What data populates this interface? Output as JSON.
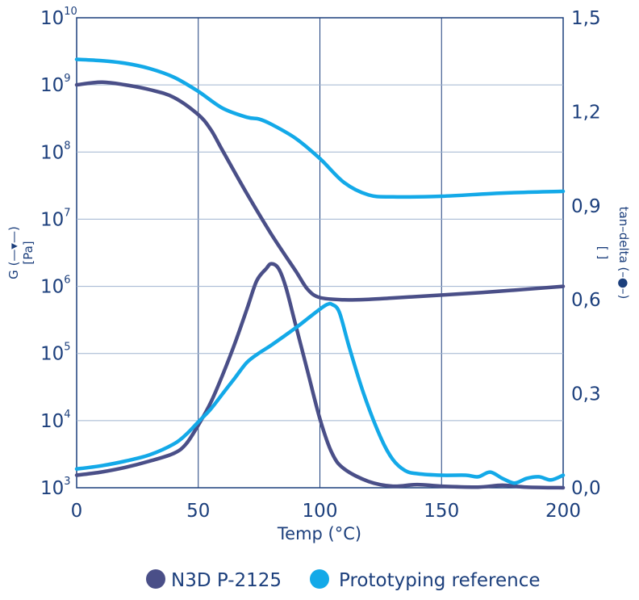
{
  "chart_data": {
    "type": "line",
    "xlabel": "Temp (°C)",
    "left_axis": {
      "label": "G (—▾—)",
      "unit": "[Pa]",
      "scale": "log",
      "ylim": [
        1000,
        10000000000
      ],
      "ticks": [
        {
          "base": "10",
          "exp": "3"
        },
        {
          "base": "10",
          "exp": "4"
        },
        {
          "base": "10",
          "exp": "5"
        },
        {
          "base": "10",
          "exp": "6"
        },
        {
          "base": "10",
          "exp": "7"
        },
        {
          "base": "10",
          "exp": "8"
        },
        {
          "base": "10",
          "exp": "9"
        },
        {
          "base": "10",
          "exp": "10"
        }
      ]
    },
    "right_axis": {
      "label": "tan–delta (–●–)",
      "unit": "[ ]",
      "ylim": [
        0,
        1.5
      ],
      "ticks": [
        "0,0",
        "0,3",
        "0,6",
        "0,9",
        "1,2",
        "1,5"
      ]
    },
    "x_axis": {
      "xlim": [
        0,
        200
      ],
      "ticks": [
        "0",
        "50",
        "100",
        "150",
        "200"
      ]
    },
    "grid": true,
    "legend_position": "bottom",
    "series": [
      {
        "name": "N3D P-2125",
        "quantity": "G",
        "axis": "left",
        "color": "#4a4f88",
        "points": [
          [
            0,
            1000000000.0
          ],
          [
            10,
            1100000000.0
          ],
          [
            20,
            1000000000.0
          ],
          [
            30,
            850000000.0
          ],
          [
            40,
            650000000.0
          ],
          [
            50,
            360000000.0
          ],
          [
            55,
            220000000.0
          ],
          [
            60,
            105000000.0
          ],
          [
            70,
            24000000.0
          ],
          [
            80,
            6000000.0
          ],
          [
            90,
            1700000.0
          ],
          [
            95,
            900000.0
          ],
          [
            100,
            680000.0
          ],
          [
            110,
            630000.0
          ],
          [
            120,
            640000.0
          ],
          [
            130,
            670000.0
          ],
          [
            150,
            740000.0
          ],
          [
            175,
            850000.0
          ],
          [
            200,
            1000000.0
          ]
        ]
      },
      {
        "name": "Prototyping reference",
        "quantity": "G",
        "axis": "left",
        "color": "#13a9e8",
        "points": [
          [
            0,
            2400000000.0
          ],
          [
            10,
            2300000000.0
          ],
          [
            20,
            2100000000.0
          ],
          [
            30,
            1750000000.0
          ],
          [
            40,
            1300000000.0
          ],
          [
            50,
            800000000.0
          ],
          [
            60,
            450000000.0
          ],
          [
            70,
            330000000.0
          ],
          [
            75,
            310000000.0
          ],
          [
            80,
            260000000.0
          ],
          [
            90,
            160000000.0
          ],
          [
            100,
            80000000.0
          ],
          [
            110,
            35000000.0
          ],
          [
            120,
            23000000.0
          ],
          [
            130,
            21500000.0
          ],
          [
            150,
            22000000.0
          ],
          [
            175,
            24500000.0
          ],
          [
            200,
            26000000.0
          ]
        ]
      },
      {
        "name": "N3D P-2125",
        "quantity": "tan delta",
        "axis": "right",
        "color": "#4a4f88",
        "points": [
          [
            0,
            0.04
          ],
          [
            10,
            0.05
          ],
          [
            20,
            0.065
          ],
          [
            30,
            0.085
          ],
          [
            40,
            0.11
          ],
          [
            45,
            0.14
          ],
          [
            50,
            0.2
          ],
          [
            55,
            0.27
          ],
          [
            60,
            0.36
          ],
          [
            65,
            0.46
          ],
          [
            70,
            0.57
          ],
          [
            74,
            0.66
          ],
          [
            78,
            0.7
          ],
          [
            80,
            0.715
          ],
          [
            83,
            0.7
          ],
          [
            86,
            0.64
          ],
          [
            90,
            0.52
          ],
          [
            95,
            0.37
          ],
          [
            100,
            0.22
          ],
          [
            105,
            0.11
          ],
          [
            110,
            0.06
          ],
          [
            120,
            0.02
          ],
          [
            130,
            0.005
          ],
          [
            140,
            0.01
          ],
          [
            150,
            0.005
          ],
          [
            165,
            0.002
          ],
          [
            175,
            0.008
          ],
          [
            185,
            0.002
          ],
          [
            200,
            0.0
          ]
        ]
      },
      {
        "name": "Prototyping reference",
        "quantity": "tan delta",
        "axis": "right",
        "color": "#13a9e8",
        "points": [
          [
            0,
            0.06
          ],
          [
            10,
            0.07
          ],
          [
            20,
            0.085
          ],
          [
            30,
            0.105
          ],
          [
            40,
            0.14
          ],
          [
            45,
            0.17
          ],
          [
            50,
            0.21
          ],
          [
            55,
            0.25
          ],
          [
            60,
            0.3
          ],
          [
            65,
            0.35
          ],
          [
            70,
            0.4
          ],
          [
            75,
            0.43
          ],
          [
            80,
            0.455
          ],
          [
            90,
            0.51
          ],
          [
            95,
            0.54
          ],
          [
            100,
            0.57
          ],
          [
            103,
            0.585
          ],
          [
            105,
            0.585
          ],
          [
            108,
            0.56
          ],
          [
            112,
            0.45
          ],
          [
            118,
            0.3
          ],
          [
            125,
            0.16
          ],
          [
            130,
            0.09
          ],
          [
            135,
            0.055
          ],
          [
            140,
            0.045
          ],
          [
            150,
            0.04
          ],
          [
            160,
            0.04
          ],
          [
            165,
            0.035
          ],
          [
            170,
            0.05
          ],
          [
            175,
            0.03
          ],
          [
            180,
            0.015
          ],
          [
            185,
            0.03
          ],
          [
            190,
            0.035
          ],
          [
            195,
            0.025
          ],
          [
            200,
            0.04
          ]
        ]
      }
    ],
    "legend": [
      {
        "label": "N3D P-2125",
        "color": "#4a4f88"
      },
      {
        "label": "Prototyping reference",
        "color": "#13a9e8"
      }
    ]
  }
}
